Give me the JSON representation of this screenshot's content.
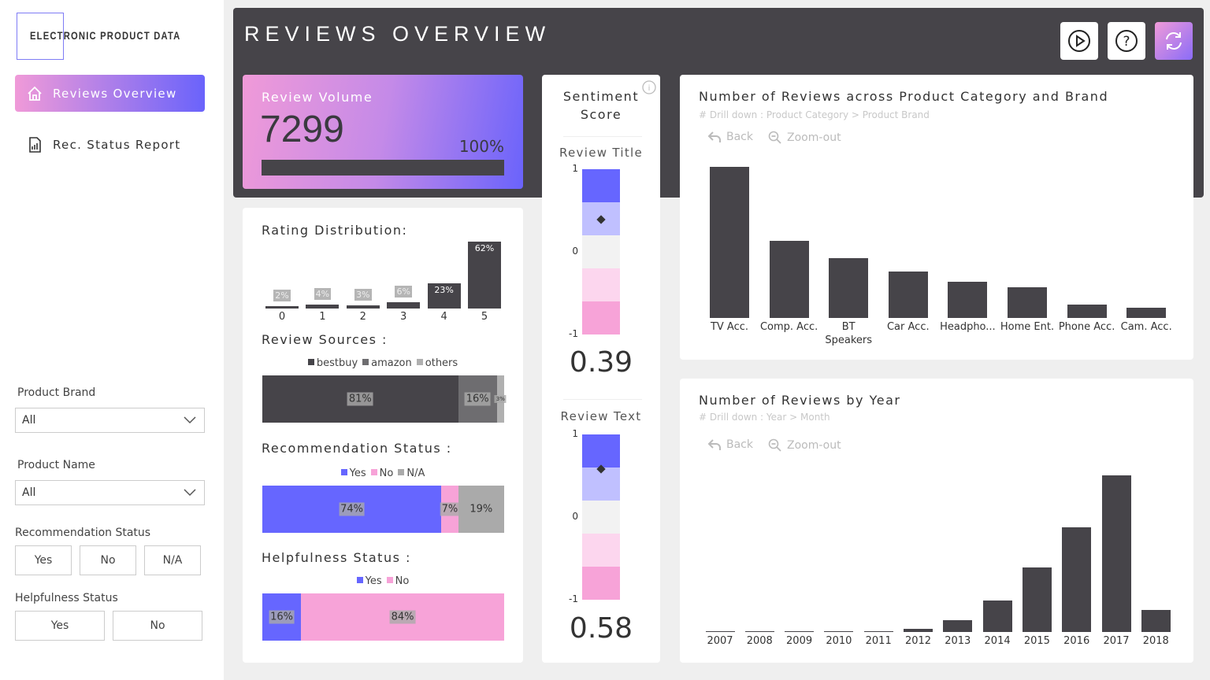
{
  "logo": "ELECTRONIC PRODUCT DATA",
  "nav": [
    {
      "label": "Reviews Overview",
      "icon": "home-icon",
      "active": true
    },
    {
      "label": "Rec. Status Report",
      "icon": "report-icon",
      "active": false
    }
  ],
  "filters": {
    "brand_label": "Product Brand",
    "brand_value": "All",
    "name_label": "Product Name",
    "name_value": "All",
    "rec_label": "Recommendation Status",
    "rec_options": [
      "Yes",
      "No",
      "N/A"
    ],
    "help_label": "Helpfulness Status",
    "help_options": [
      "Yes",
      "No"
    ]
  },
  "header": {
    "title": "REVIEWS OVERVIEW",
    "buttons": [
      "play-icon",
      "help-icon",
      "refresh-icon"
    ]
  },
  "volume": {
    "label": "Review Volume",
    "value": "7299",
    "percent_label": "100%",
    "percent": 100
  },
  "colors": {
    "accent_blue": "#6666ff",
    "accent_pink": "#f7a3d8",
    "dark": "#464449",
    "gradient_start": "#f09ad8",
    "gradient_end": "#6a63fb"
  },
  "rating": {
    "title": "Rating Distribution:",
    "categories": [
      "0",
      "1",
      "2",
      "3",
      "4",
      "5"
    ],
    "values": [
      2,
      4,
      3,
      6,
      23,
      62
    ],
    "labels": [
      "2%",
      "4%",
      "3%",
      "6%",
      "23%",
      "62%"
    ]
  },
  "sources": {
    "title": "Review Sources :",
    "legend": [
      "bestbuy",
      "amazon",
      "others"
    ],
    "values": [
      81,
      16,
      3
    ],
    "labels": [
      "81%",
      "16%",
      "3%"
    ],
    "colors": [
      "#464449",
      "#6e6d70",
      "#b0b0b0"
    ]
  },
  "recommendation": {
    "title": "Recommendation Status :",
    "legend": [
      "Yes",
      "No",
      "N/A"
    ],
    "values": [
      74,
      7,
      19
    ],
    "labels": [
      "74%",
      "7%",
      "19%"
    ],
    "colors": [
      "#6666ff",
      "#f7a3d8",
      "#aaaaaa"
    ]
  },
  "helpfulness": {
    "title": "Helpfulness Status :",
    "legend": [
      "Yes",
      "No"
    ],
    "values": [
      16,
      84
    ],
    "labels": [
      "16%",
      "84%"
    ],
    "colors": [
      "#6666ff",
      "#f7a3d8"
    ]
  },
  "sentiment": {
    "title1": "Sentiment",
    "title2": "Score",
    "info_icon": "info-icon",
    "axis": [
      "1",
      "0",
      "-1"
    ],
    "title_gauge": {
      "label": "Review Title",
      "value": 0.39,
      "value_label": "0.39"
    },
    "text_gauge": {
      "label": "Review Text",
      "value": 0.58,
      "value_label": "0.58"
    },
    "bands": [
      "#6666ff",
      "#c0c0ff",
      "#f2f2f2",
      "#fcd6ee",
      "#f7a3d8"
    ]
  },
  "chart_data": [
    {
      "type": "bar",
      "title": "Number of Reviews across Product Category and Brand",
      "subtitle": "# Drill down : Product Category > Product Brand",
      "back": "Back",
      "zoom": "Zoom-out",
      "categories": [
        "TV Acc.",
        "Comp. Acc.",
        "BT Speakers",
        "Car Acc.",
        "Headpho...",
        "Home Ent.",
        "Phone Acc.",
        "Cam. Acc."
      ],
      "values": [
        2600,
        1330,
        1030,
        800,
        620,
        530,
        230,
        180
      ]
    },
    {
      "type": "bar",
      "title": "Number of Reviews by Year",
      "subtitle": "# Drill down : Year > Month",
      "back": "Back",
      "zoom": "Zoom-out",
      "categories": [
        "2007",
        "2008",
        "2009",
        "2010",
        "2011",
        "2012",
        "2013",
        "2014",
        "2015",
        "2016",
        "2017",
        "2018"
      ],
      "values": [
        10,
        10,
        10,
        10,
        15,
        55,
        200,
        540,
        1110,
        1800,
        2690,
        380
      ]
    }
  ]
}
